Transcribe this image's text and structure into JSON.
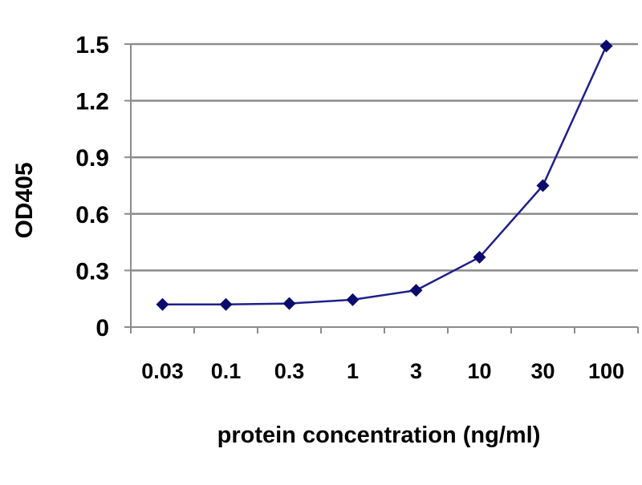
{
  "chart_data": {
    "type": "line",
    "title": "",
    "xlabel": "protein concentration (ng/ml)",
    "ylabel": "OD405",
    "categories": [
      "0.03",
      "0.1",
      "0.3",
      "1",
      "3",
      "10",
      "30",
      "100"
    ],
    "series": [
      {
        "values": [
          0.12,
          0.12,
          0.125,
          0.145,
          0.195,
          0.37,
          0.75,
          1.49
        ]
      }
    ],
    "y_ticks": [
      "0",
      "0.3",
      "0.6",
      "0.9",
      "1.2",
      "1.5"
    ],
    "ylim": [
      0,
      1.5
    ],
    "grid": "horizontal",
    "legend": "none",
    "colors": {
      "series": "#1f1f8c",
      "marker": "#0a0a6e",
      "grid": "#8c8c8c",
      "axis": "#8c8c8c"
    }
  }
}
